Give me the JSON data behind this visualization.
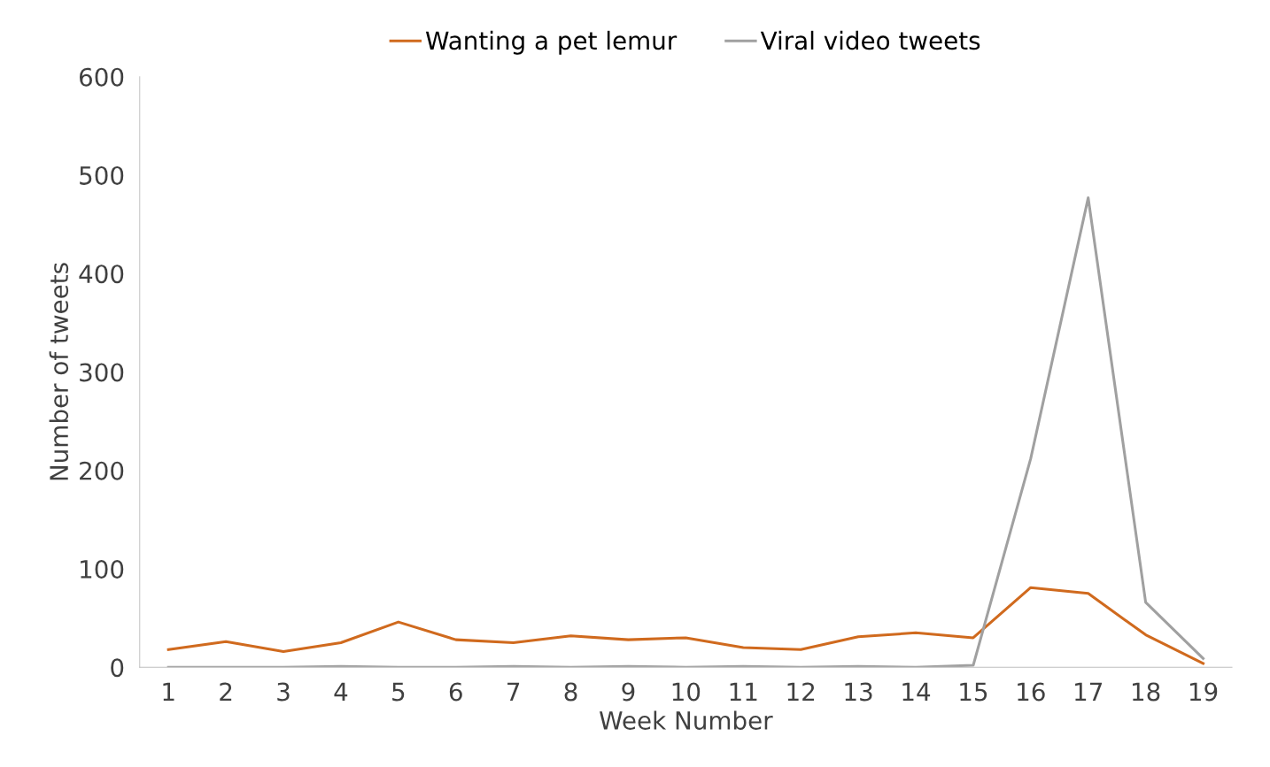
{
  "chart_data": {
    "type": "line",
    "xlabel": "Week Number",
    "ylabel": "Number of tweets",
    "categories": [
      "1",
      "2",
      "3",
      "4",
      "5",
      "6",
      "7",
      "8",
      "9",
      "10",
      "11",
      "12",
      "13",
      "14",
      "15",
      "16",
      "17",
      "18",
      "19"
    ],
    "series": [
      {
        "name": "Wanting a pet lemur",
        "color": "#d06a1e",
        "values": [
          18,
          26,
          16,
          25,
          46,
          28,
          25,
          32,
          28,
          30,
          20,
          18,
          31,
          35,
          30,
          81,
          75,
          33,
          4
        ]
      },
      {
        "name": "Viral video tweets",
        "color": "#a0a0a0",
        "values": [
          0,
          0,
          0,
          1,
          0,
          0,
          1,
          0,
          1,
          0,
          1,
          0,
          1,
          0,
          2,
          212,
          477,
          66,
          9
        ]
      }
    ],
    "ylim": [
      0,
      600
    ],
    "yticks": [
      0,
      100,
      200,
      300,
      400,
      500,
      600
    ],
    "grid": false,
    "legend": "top",
    "marker": "none",
    "line_style": "solid"
  }
}
